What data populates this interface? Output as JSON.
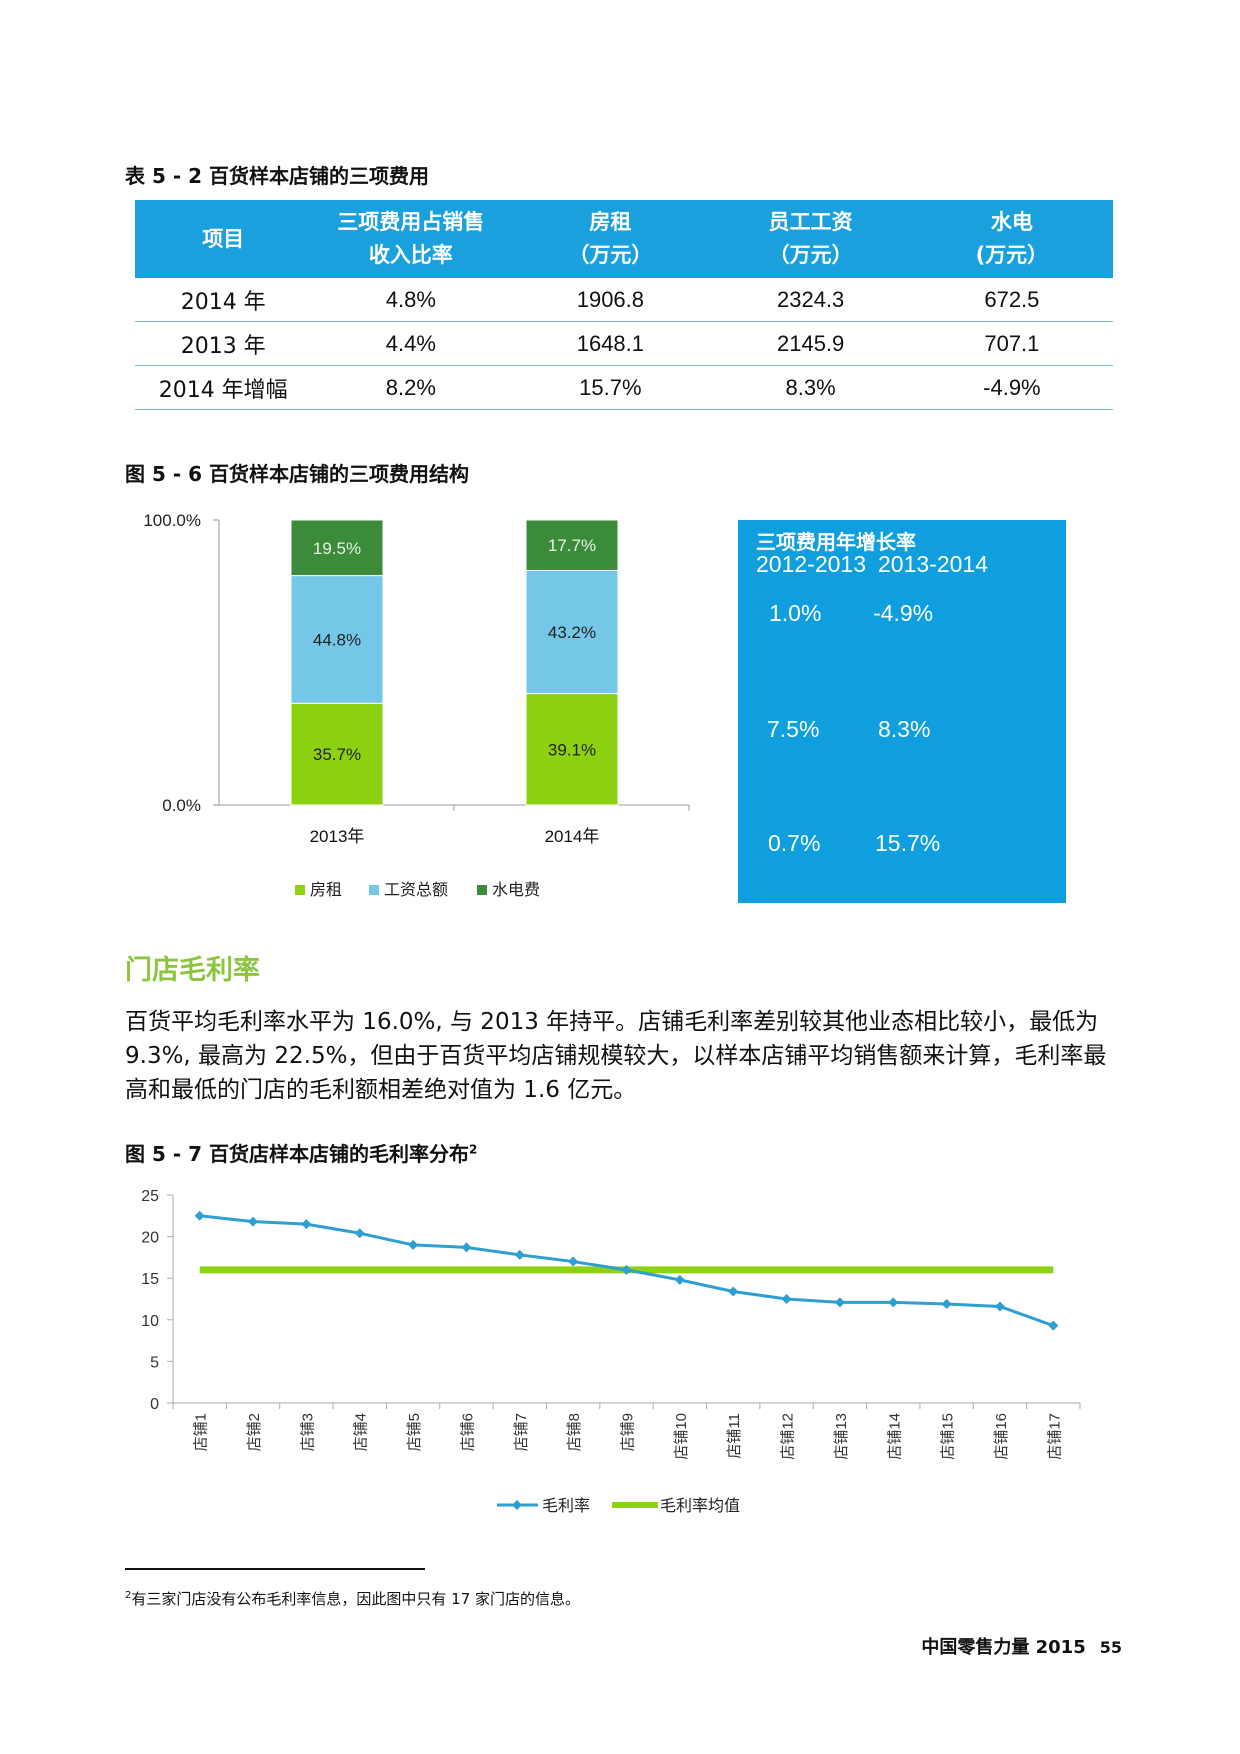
{
  "table_caption": "表 5 - 2 百货样本店铺的三项费用",
  "cost_table": {
    "headers": [
      [
        "项目"
      ],
      [
        "三项费用占销售",
        "收入比率"
      ],
      [
        "房租",
        "（万元）"
      ],
      [
        "员工工资",
        "（万元）"
      ],
      [
        "水电",
        "(万元）"
      ]
    ],
    "rows": [
      [
        "2014 年",
        "4.8%",
        "1906.8",
        "2324.3",
        "672.5"
      ],
      [
        "2013 年",
        "4.4%",
        "1648.1",
        "2145.9",
        "707.1"
      ],
      [
        "2014 年增幅",
        "8.2%",
        "15.7%",
        "8.3%",
        "-4.9%"
      ]
    ]
  },
  "fig6_caption": "图 5 - 6 百货样本店铺的三项费用结构",
  "fig6_axis": {
    "top_label": "100.0%",
    "bottom_label": "0.0%"
  },
  "growth_box": {
    "title": "三项费用年增长率",
    "col_headers": [
      "2012-2013",
      "2013-2014"
    ],
    "rows": [
      [
        "1.0%",
        "-4.9%"
      ],
      [
        "7.5%",
        "8.3%"
      ],
      [
        "0.7%",
        "15.7%"
      ]
    ]
  },
  "section_title": "门店毛利率",
  "paragraph": "百货平均毛利率水平为 16.0%, 与 2013 年持平。店铺毛利率差别较其他业态相比较小，最低为 9.3%, 最高为 22.5%，但由于百货平均店铺规模较大，以样本店铺平均销售额来计算，毛利率最高和最低的门店的毛利额相差绝对值为 1.6 亿元。",
  "fig7_caption": "图 5 - 7 百货店样本店铺的毛利率分布",
  "fig7_sup": "2",
  "footnote_mark": "2",
  "footnote_text": "有三家门店没有公布毛利率信息，因此图中只有 17 家门店的信息。",
  "footer": {
    "title": "中国零售力量 2015",
    "page": "55"
  },
  "chart_data": [
    {
      "type": "bar",
      "stacked": true,
      "categories": [
        "2013年",
        "2014年"
      ],
      "series": [
        {
          "name": "房租",
          "values": [
            35.7,
            39.1
          ],
          "labels": [
            "35.7%",
            "39.1%"
          ],
          "color": "#8cd211"
        },
        {
          "name": "工资总额",
          "values": [
            44.8,
            43.2
          ],
          "labels": [
            "44.8%",
            "43.2%"
          ],
          "color": "#74c7e6"
        },
        {
          "name": "水电费",
          "values": [
            19.5,
            17.7
          ],
          "labels": [
            "19.5%",
            "17.7%"
          ],
          "color": "#3b8b3b"
        }
      ],
      "ylim": [
        0,
        100
      ],
      "legend": "bottom"
    },
    {
      "type": "line",
      "categories": [
        "店铺1",
        "店铺2",
        "店铺3",
        "店铺4",
        "店铺5",
        "店铺6",
        "店铺7",
        "店铺8",
        "店铺9",
        "店铺10",
        "店铺11",
        "店铺12",
        "店铺13",
        "店铺14",
        "店铺15",
        "店铺16",
        "店铺17"
      ],
      "series": [
        {
          "name": "毛利率",
          "values": [
            22.5,
            21.8,
            21.5,
            20.4,
            19.0,
            18.7,
            17.8,
            17.0,
            16.0,
            14.8,
            13.4,
            12.5,
            12.1,
            12.1,
            11.9,
            11.6,
            9.3
          ],
          "color": "#2e9fd0"
        },
        {
          "name": "毛利率均值",
          "values": [
            16,
            16,
            16,
            16,
            16,
            16,
            16,
            16,
            16,
            16,
            16,
            16,
            16,
            16,
            16,
            16,
            16
          ],
          "color": "#8cd211"
        }
      ],
      "ylim": [
        0,
        25
      ],
      "yticks": [
        0,
        5,
        10,
        15,
        20,
        25
      ],
      "legend": "bottom"
    }
  ]
}
